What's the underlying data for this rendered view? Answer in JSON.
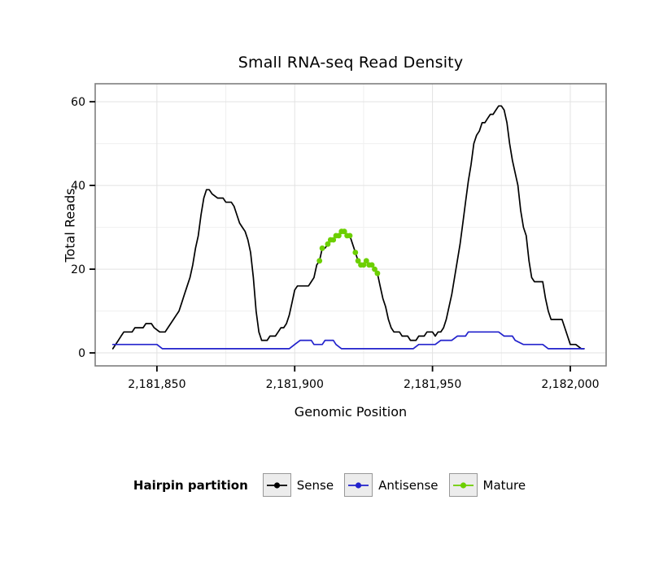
{
  "chart": {
    "title": "Small RNA-seq Read Density",
    "xlabel": "Genomic Position",
    "ylabel": "Total Reads"
  },
  "legend": {
    "title": "Hairpin partition",
    "items": [
      {
        "label": "Sense",
        "color": "#000000"
      },
      {
        "label": "Antisense",
        "color": "#2222cc"
      },
      {
        "label": "Mature",
        "color": "#6ccf00"
      }
    ]
  },
  "chart_data": {
    "type": "line",
    "title": "Small RNA-seq Read Density",
    "xlabel": "Genomic Position",
    "ylabel": "Total Reads",
    "legend_position": "bottom",
    "grid": true,
    "x_domain": [
      2181827.6,
      2182013
    ],
    "y_domain": [
      -3.1,
      64.3
    ],
    "x_ticks": [
      2181850,
      2181900,
      2181950,
      2182000
    ],
    "x_tick_labels": [
      "2,181,850",
      "2,181,900",
      "2,181,950",
      "2,182,000"
    ],
    "x_minor": [
      2181875,
      2181925,
      2181975
    ],
    "y_ticks": [
      0,
      20,
      40,
      60
    ],
    "y_tick_labels": [
      "0",
      "20",
      "40",
      "60"
    ],
    "y_minor": [
      10,
      30,
      50
    ],
    "style": {
      "grid_major": "#e2e2e2",
      "grid_minor": "#f0f0f0",
      "frame": "#7f7f7f",
      "background": "#ffffff"
    },
    "series": [
      {
        "name": "Sense",
        "type": "line",
        "color": "#000000",
        "points": [
          [
            2181834,
            1
          ],
          [
            2181835,
            2
          ],
          [
            2181836,
            3
          ],
          [
            2181837,
            4
          ],
          [
            2181838,
            5
          ],
          [
            2181841,
            5
          ],
          [
            2181842,
            6
          ],
          [
            2181845,
            6
          ],
          [
            2181846,
            7
          ],
          [
            2181848,
            7
          ],
          [
            2181849,
            6
          ],
          [
            2181851,
            5
          ],
          [
            2181853,
            5
          ],
          [
            2181854,
            6
          ],
          [
            2181855,
            7
          ],
          [
            2181856,
            8
          ],
          [
            2181857,
            9
          ],
          [
            2181858,
            10
          ],
          [
            2181859,
            12
          ],
          [
            2181860,
            14
          ],
          [
            2181861,
            16
          ],
          [
            2181862,
            18
          ],
          [
            2181863,
            21
          ],
          [
            2181864,
            25
          ],
          [
            2181865,
            28
          ],
          [
            2181866,
            33
          ],
          [
            2181867,
            37
          ],
          [
            2181868,
            39
          ],
          [
            2181869,
            39
          ],
          [
            2181870,
            38
          ],
          [
            2181872,
            37
          ],
          [
            2181874,
            37
          ],
          [
            2181875,
            36
          ],
          [
            2181877,
            36
          ],
          [
            2181878,
            35
          ],
          [
            2181879,
            33
          ],
          [
            2181880,
            31
          ],
          [
            2181881,
            30
          ],
          [
            2181882,
            29
          ],
          [
            2181883,
            27
          ],
          [
            2181884,
            24
          ],
          [
            2181885,
            18
          ],
          [
            2181886,
            10
          ],
          [
            2181887,
            5
          ],
          [
            2181888,
            3
          ],
          [
            2181890,
            3
          ],
          [
            2181891,
            4
          ],
          [
            2181893,
            4
          ],
          [
            2181894,
            5
          ],
          [
            2181895,
            6
          ],
          [
            2181896,
            6
          ],
          [
            2181897,
            7
          ],
          [
            2181898,
            9
          ],
          [
            2181899,
            12
          ],
          [
            2181900,
            15
          ],
          [
            2181901,
            16
          ],
          [
            2181905,
            16
          ],
          [
            2181906,
            17
          ],
          [
            2181907,
            18
          ],
          [
            2181908,
            21
          ],
          [
            2181909,
            22
          ],
          [
            2181910,
            25
          ],
          [
            2181911,
            25
          ],
          [
            2181912,
            26
          ],
          [
            2181913,
            27
          ],
          [
            2181914,
            27
          ],
          [
            2181915,
            28
          ],
          [
            2181916,
            28
          ],
          [
            2181917,
            29
          ],
          [
            2181918,
            29
          ],
          [
            2181919,
            28
          ],
          [
            2181920,
            28
          ],
          [
            2181921,
            26
          ],
          [
            2181922,
            24
          ],
          [
            2181923,
            22
          ],
          [
            2181924,
            21
          ],
          [
            2181925,
            21
          ],
          [
            2181926,
            22
          ],
          [
            2181927,
            21
          ],
          [
            2181928,
            21
          ],
          [
            2181929,
            20
          ],
          [
            2181930,
            19
          ],
          [
            2181931,
            16
          ],
          [
            2181932,
            13
          ],
          [
            2181933,
            11
          ],
          [
            2181934,
            8
          ],
          [
            2181935,
            6
          ],
          [
            2181936,
            5
          ],
          [
            2181938,
            5
          ],
          [
            2181939,
            4
          ],
          [
            2181941,
            4
          ],
          [
            2181942,
            3
          ],
          [
            2181944,
            3
          ],
          [
            2181945,
            4
          ],
          [
            2181947,
            4
          ],
          [
            2181948,
            5
          ],
          [
            2181950,
            5
          ],
          [
            2181951,
            4
          ],
          [
            2181952,
            5
          ],
          [
            2181953,
            5
          ],
          [
            2181954,
            6
          ],
          [
            2181955,
            8
          ],
          [
            2181956,
            11
          ],
          [
            2181957,
            14
          ],
          [
            2181958,
            18
          ],
          [
            2181959,
            22
          ],
          [
            2181960,
            26
          ],
          [
            2181961,
            31
          ],
          [
            2181962,
            36
          ],
          [
            2181963,
            41
          ],
          [
            2181964,
            45
          ],
          [
            2181965,
            50
          ],
          [
            2181966,
            52
          ],
          [
            2181967,
            53
          ],
          [
            2181968,
            55
          ],
          [
            2181969,
            55
          ],
          [
            2181970,
            56
          ],
          [
            2181971,
            57
          ],
          [
            2181972,
            57
          ],
          [
            2181973,
            58
          ],
          [
            2181974,
            59
          ],
          [
            2181975,
            59
          ],
          [
            2181976,
            58
          ],
          [
            2181977,
            55
          ],
          [
            2181978,
            50
          ],
          [
            2181979,
            46
          ],
          [
            2181980,
            43
          ],
          [
            2181981,
            40
          ],
          [
            2181982,
            34
          ],
          [
            2181983,
            30
          ],
          [
            2181984,
            28
          ],
          [
            2181985,
            22
          ],
          [
            2181986,
            18
          ],
          [
            2181987,
            17
          ],
          [
            2181990,
            17
          ],
          [
            2181991,
            13
          ],
          [
            2181992,
            10
          ],
          [
            2181993,
            8
          ],
          [
            2181997,
            8
          ],
          [
            2181998,
            6
          ],
          [
            2181999,
            4
          ],
          [
            2182000,
            2
          ],
          [
            2182002,
            2
          ],
          [
            2182004,
            1
          ],
          [
            2182005,
            1
          ]
        ]
      },
      {
        "name": "Antisense",
        "type": "line",
        "color": "#2222cc",
        "points": [
          [
            2181834,
            2
          ],
          [
            2181850,
            2
          ],
          [
            2181852,
            1
          ],
          [
            2181898,
            1
          ],
          [
            2181900,
            2
          ],
          [
            2181902,
            3
          ],
          [
            2181906,
            3
          ],
          [
            2181907,
            2
          ],
          [
            2181910,
            2
          ],
          [
            2181911,
            3
          ],
          [
            2181914,
            3
          ],
          [
            2181915,
            2
          ],
          [
            2181917,
            1
          ],
          [
            2181943,
            1
          ],
          [
            2181945,
            2
          ],
          [
            2181951,
            2
          ],
          [
            2181953,
            3
          ],
          [
            2181957,
            3
          ],
          [
            2181959,
            4
          ],
          [
            2181962,
            4
          ],
          [
            2181963,
            5
          ],
          [
            2181974,
            5
          ],
          [
            2181976,
            4
          ],
          [
            2181979,
            4
          ],
          [
            2181980,
            3
          ],
          [
            2181983,
            2
          ],
          [
            2181990,
            2
          ],
          [
            2181992,
            1
          ],
          [
            2182005,
            1
          ]
        ]
      },
      {
        "name": "Mature",
        "type": "points",
        "color": "#6ccf00",
        "points": [
          [
            2181909,
            22
          ],
          [
            2181910,
            25
          ],
          [
            2181912,
            26
          ],
          [
            2181913,
            27
          ],
          [
            2181914,
            27
          ],
          [
            2181915,
            28
          ],
          [
            2181916,
            28
          ],
          [
            2181917,
            29
          ],
          [
            2181918,
            29
          ],
          [
            2181919,
            28
          ],
          [
            2181920,
            28
          ],
          [
            2181922,
            24
          ],
          [
            2181923,
            22
          ],
          [
            2181924,
            21
          ],
          [
            2181925,
            21
          ],
          [
            2181926,
            22
          ],
          [
            2181927,
            21
          ],
          [
            2181928,
            21
          ],
          [
            2181929,
            20
          ],
          [
            2181930,
            19
          ]
        ]
      }
    ]
  }
}
